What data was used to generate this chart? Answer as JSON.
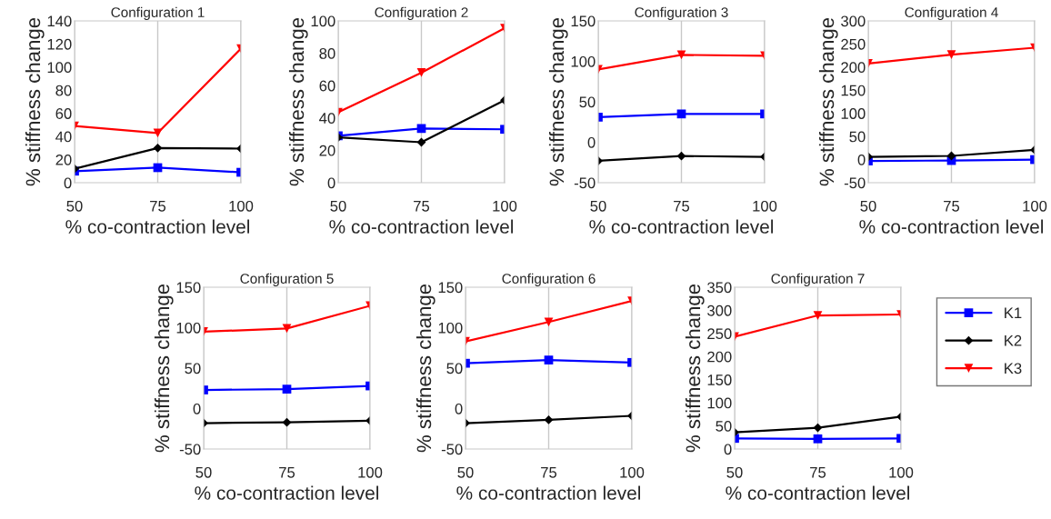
{
  "chart_data": [
    {
      "type": "line",
      "title": "Configuration 1",
      "xlabel": "% co-contraction level",
      "ylabel": "% stiffness change",
      "x": [
        50,
        75,
        100
      ],
      "xlim": [
        50,
        100
      ],
      "xticks": [
        50,
        75,
        100
      ],
      "ylim": [
        0,
        140
      ],
      "yticks": [
        0,
        20,
        40,
        60,
        80,
        100,
        120,
        140
      ],
      "grid": "x",
      "legend": false,
      "series": [
        {
          "color": "#0000ff",
          "marker": "square",
          "values": [
            10,
            13,
            9
          ]
        },
        {
          "color": "#000000",
          "marker": "diamond",
          "values": [
            12,
            30,
            29.5
          ]
        },
        {
          "color": "#ff0000",
          "marker": "triangle",
          "values": [
            49,
            43,
            116
          ]
        }
      ]
    },
    {
      "type": "line",
      "title": "Configuration 2",
      "xlabel": "% co-contraction level",
      "ylabel": "% stiffness change",
      "x": [
        50,
        75,
        100
      ],
      "xlim": [
        50,
        100
      ],
      "xticks": [
        50,
        75,
        100
      ],
      "ylim": [
        0,
        100
      ],
      "yticks": [
        0,
        20,
        40,
        60,
        80,
        100
      ],
      "grid": "x",
      "legend": false,
      "series": [
        {
          "color": "#0000ff",
          "marker": "square",
          "values": [
            29,
            33.5,
            33
          ]
        },
        {
          "color": "#000000",
          "marker": "diamond",
          "values": [
            28,
            25,
            51
          ]
        },
        {
          "color": "#ff0000",
          "marker": "triangle",
          "values": [
            43.5,
            68,
            95.5
          ]
        }
      ]
    },
    {
      "type": "line",
      "title": "Configuration 3",
      "xlabel": "% co-contraction level",
      "ylabel": "% stiffness change",
      "x": [
        50,
        75,
        100
      ],
      "xlim": [
        50,
        100
      ],
      "xticks": [
        50,
        75,
        100
      ],
      "ylim": [
        -50,
        150
      ],
      "yticks": [
        -50,
        0,
        50,
        100,
        150
      ],
      "grid": "x",
      "legend": false,
      "series": [
        {
          "color": "#0000ff",
          "marker": "square",
          "values": [
            31,
            35,
            35
          ]
        },
        {
          "color": "#000000",
          "marker": "diamond",
          "values": [
            -23,
            -17,
            -18
          ]
        },
        {
          "color": "#ff0000",
          "marker": "triangle",
          "values": [
            90,
            108,
            107
          ]
        }
      ]
    },
    {
      "type": "line",
      "title": "Configuration 4",
      "xlabel": "% co-contraction level",
      "ylabel": "% stiffness change",
      "x": [
        50,
        75,
        100
      ],
      "xlim": [
        50,
        100
      ],
      "xticks": [
        50,
        75,
        100
      ],
      "ylim": [
        -50,
        300
      ],
      "yticks": [
        -50,
        0,
        50,
        100,
        150,
        200,
        250,
        300
      ],
      "grid": "x",
      "legend": false,
      "series": [
        {
          "color": "#0000ff",
          "marker": "square",
          "values": [
            -3,
            -2,
            0
          ]
        },
        {
          "color": "#000000",
          "marker": "diamond",
          "values": [
            6,
            8,
            21
          ]
        },
        {
          "color": "#ff0000",
          "marker": "triangle",
          "values": [
            208,
            227,
            242
          ]
        }
      ]
    },
    {
      "type": "line",
      "title": "Configuration 5",
      "xlabel": "% co-contraction level",
      "ylabel": "% stiffness change",
      "x": [
        50,
        75,
        100
      ],
      "xlim": [
        50,
        100
      ],
      "xticks": [
        50,
        75,
        100
      ],
      "ylim": [
        -50,
        150
      ],
      "yticks": [
        -50,
        0,
        50,
        100,
        150
      ],
      "grid": "x",
      "legend": false,
      "series": [
        {
          "color": "#0000ff",
          "marker": "square",
          "values": [
            23,
            24,
            28
          ]
        },
        {
          "color": "#000000",
          "marker": "diamond",
          "values": [
            -18,
            -17,
            -15
          ]
        },
        {
          "color": "#ff0000",
          "marker": "triangle",
          "values": [
            95,
            99,
            127
          ]
        }
      ]
    },
    {
      "type": "line",
      "title": "Configuration 6",
      "xlabel": "% co-contraction level",
      "ylabel": "% stiffness change",
      "x": [
        50,
        75,
        100
      ],
      "xlim": [
        50,
        100
      ],
      "xticks": [
        50,
        75,
        100
      ],
      "ylim": [
        -50,
        150
      ],
      "yticks": [
        -50,
        0,
        50,
        100,
        150
      ],
      "grid": "x",
      "legend": false,
      "series": [
        {
          "color": "#0000ff",
          "marker": "square",
          "values": [
            56,
            60,
            57
          ]
        },
        {
          "color": "#000000",
          "marker": "diamond",
          "values": [
            -18,
            -14,
            -9
          ]
        },
        {
          "color": "#ff0000",
          "marker": "triangle",
          "values": [
            83,
            107,
            133
          ]
        }
      ]
    },
    {
      "type": "line",
      "title": "Configuration 7",
      "xlabel": "% co-contraction level",
      "ylabel": "% stiffness change",
      "x": [
        50,
        75,
        100
      ],
      "xlim": [
        50,
        100
      ],
      "xticks": [
        50,
        75,
        100
      ],
      "ylim": [
        0,
        350
      ],
      "yticks": [
        0,
        50,
        100,
        150,
        200,
        250,
        300,
        350
      ],
      "grid": "x",
      "legend": "right",
      "series": [
        {
          "name": "K1",
          "color": "#0000ff",
          "marker": "square",
          "values": [
            23,
            22,
            23
          ]
        },
        {
          "name": "K2",
          "color": "#000000",
          "marker": "diamond",
          "values": [
            36,
            46,
            70
          ]
        },
        {
          "name": "K3",
          "color": "#ff0000",
          "marker": "triangle",
          "values": [
            243,
            289,
            291
          ]
        }
      ]
    }
  ]
}
